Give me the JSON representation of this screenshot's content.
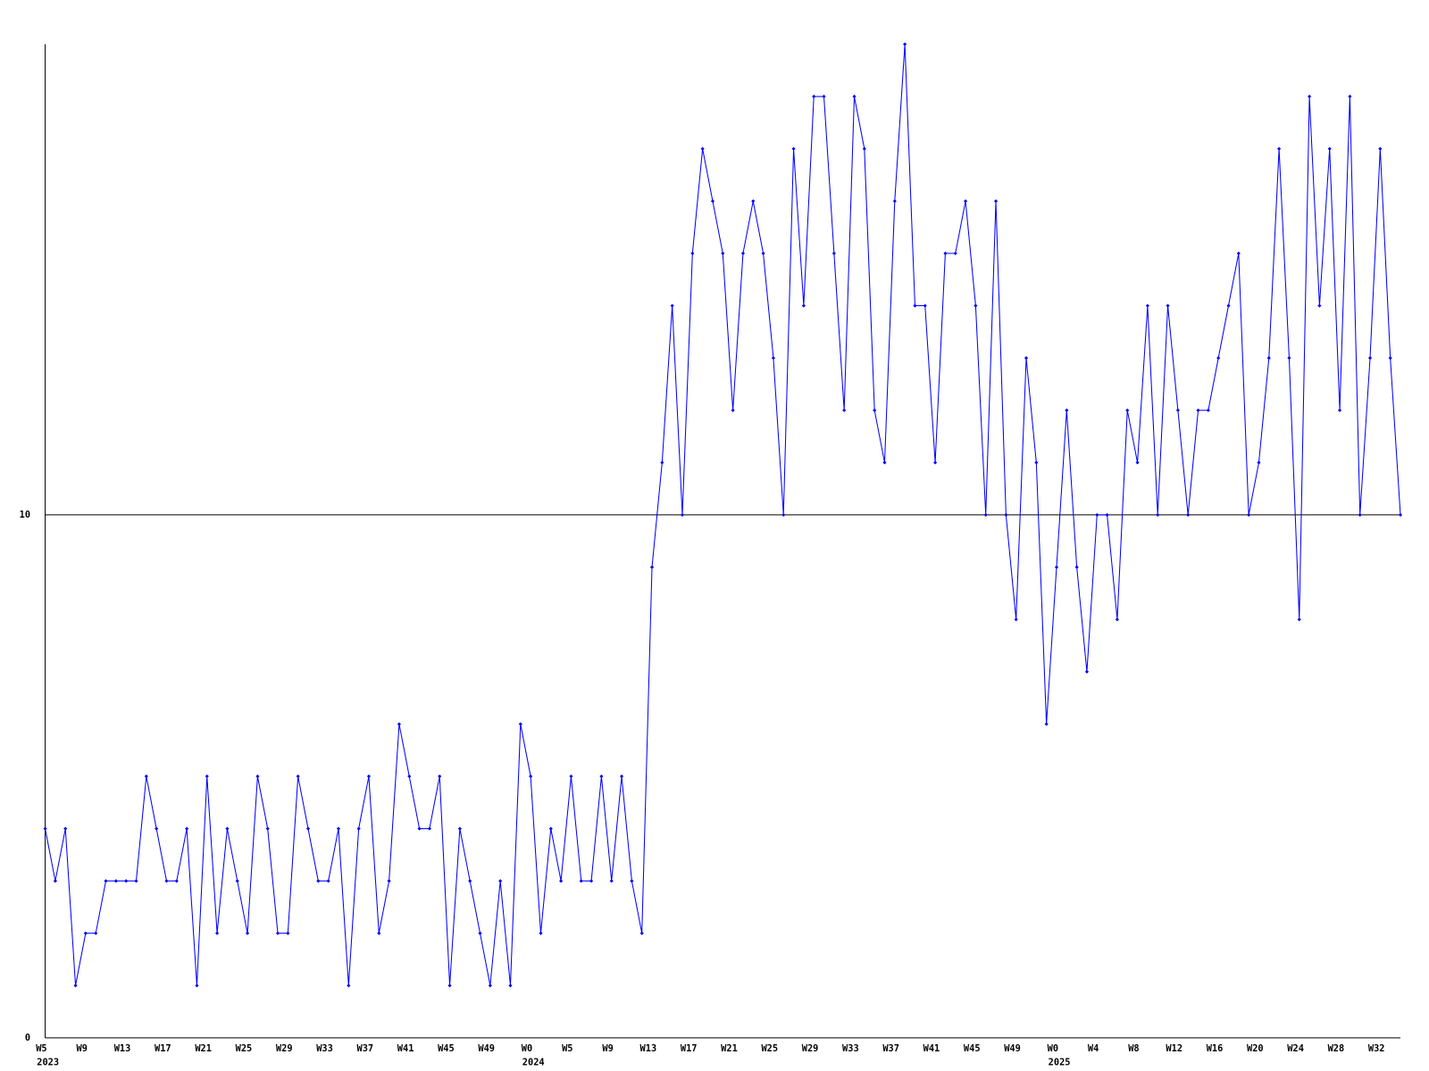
{
  "chart_data": {
    "type": "line",
    "categories": [
      "W5",
      null,
      null,
      null,
      "W9",
      null,
      null,
      null,
      "W13",
      null,
      null,
      null,
      "W17",
      null,
      null,
      null,
      "W21",
      null,
      null,
      null,
      "W25",
      null,
      null,
      null,
      "W29",
      null,
      null,
      null,
      "W33",
      null,
      null,
      null,
      "W37",
      null,
      null,
      null,
      "W41",
      null,
      null,
      null,
      "W45",
      null,
      null,
      null,
      "W49",
      null,
      null,
      null,
      "W0",
      null,
      null,
      null,
      "W5",
      null,
      null,
      null,
      "W9",
      null,
      null,
      null,
      "W13",
      null,
      null,
      null,
      "W17",
      null,
      null,
      null,
      "W21",
      null,
      null,
      null,
      "W25",
      null,
      null,
      null,
      "W29",
      null,
      null,
      null,
      "W33",
      null,
      null,
      null,
      "W37",
      null,
      null,
      null,
      "W41",
      null,
      null,
      null,
      "W45",
      null,
      null,
      null,
      "W49",
      null,
      null,
      null,
      "W0",
      null,
      null,
      null,
      "W4",
      null,
      null,
      null,
      "W8",
      null,
      null,
      null,
      "W12",
      null,
      null,
      null,
      "W16",
      null,
      null,
      null,
      "W20",
      null,
      null,
      null,
      "W24",
      null,
      null,
      null,
      "W28",
      null,
      null,
      null,
      "W32",
      null,
      null
    ],
    "year_categories": [
      "2023",
      null,
      null,
      null,
      null,
      null,
      null,
      null,
      null,
      null,
      null,
      null,
      null,
      null,
      null,
      null,
      null,
      null,
      null,
      null,
      null,
      null,
      null,
      null,
      null,
      null,
      null,
      null,
      null,
      null,
      null,
      null,
      null,
      null,
      null,
      null,
      null,
      null,
      null,
      null,
      null,
      null,
      null,
      null,
      null,
      null,
      null,
      null,
      "2024",
      null,
      null,
      null,
      null,
      null,
      null,
      null,
      null,
      null,
      null,
      null,
      null,
      null,
      null,
      null,
      null,
      null,
      null,
      null,
      null,
      null,
      null,
      null,
      null,
      null,
      null,
      null,
      null,
      null,
      null,
      null,
      null,
      null,
      null,
      null,
      null,
      null,
      null,
      null,
      null,
      null,
      null,
      null,
      null,
      null,
      null,
      null,
      null,
      null,
      null,
      null,
      "2025",
      null,
      null,
      null,
      null,
      null,
      null,
      null,
      null,
      null,
      null,
      null,
      null,
      null,
      null,
      null,
      null,
      null,
      null,
      null,
      null,
      null,
      null,
      null,
      null,
      null,
      null,
      null,
      null,
      null,
      null,
      null,
      null,
      null,
      null
    ],
    "series": [
      {
        "name": null,
        "color": "#0000ff",
        "values": [
          4,
          3,
          4,
          1,
          2,
          2,
          3,
          3,
          3,
          3,
          5,
          4,
          3,
          3,
          4,
          1,
          5,
          2,
          4,
          3,
          2,
          5,
          4,
          2,
          2,
          5,
          4,
          3,
          3,
          4,
          1,
          4,
          5,
          2,
          3,
          6,
          5,
          4,
          4,
          5,
          1,
          4,
          3,
          2,
          1,
          3,
          1,
          6,
          5,
          2,
          4,
          3,
          5,
          3,
          3,
          5,
          3,
          5,
          3,
          2,
          9,
          11,
          14,
          10,
          15,
          17,
          16,
          15,
          12,
          15,
          16,
          15,
          13,
          10,
          17,
          14,
          18,
          18,
          15,
          12,
          18,
          17,
          12,
          11,
          16,
          19,
          14,
          14,
          11,
          15,
          15,
          16,
          14,
          10,
          16,
          10,
          8,
          13,
          11,
          6,
          9,
          12,
          9,
          7,
          10,
          10,
          8,
          12,
          11,
          14,
          10,
          14,
          12,
          10,
          12,
          12,
          13,
          14,
          15,
          10,
          11,
          13,
          17,
          13,
          8,
          18,
          14,
          17,
          12,
          18,
          10,
          13,
          17,
          13,
          10
        ]
      }
    ],
    "ylim": [
      0,
      19
    ],
    "yticks": [
      0,
      10
    ],
    "grid": true
  }
}
